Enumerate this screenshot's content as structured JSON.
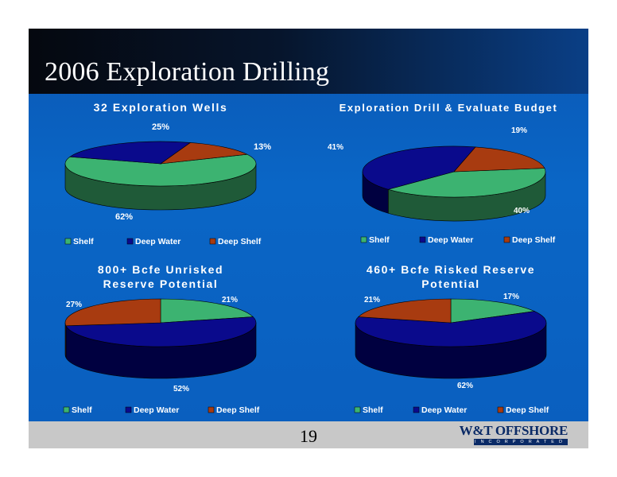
{
  "slide": {
    "title": "2006 Exploration Drilling",
    "page_number": "19",
    "logo_text": "W&T OFFSHORE",
    "logo_subtext": "INCORPORATED"
  },
  "colors": {
    "shelf": "#3cb371",
    "deep_water": "#0a0a8c",
    "deep_shelf": "#a83b10",
    "background": "#0a5fbf",
    "title_bar": "#06152c"
  },
  "chart_data": [
    {
      "type": "pie",
      "title": "32 Exploration Wells",
      "categories": [
        "Shelf",
        "Deep Water",
        "Deep Shelf"
      ],
      "values": [
        62,
        25,
        13
      ],
      "labels": [
        "62%",
        "25%",
        "13%"
      ],
      "legend": [
        "Shelf",
        "Deep Water",
        "Deep Shelf"
      ],
      "legend_position": "bottom",
      "three_d": true
    },
    {
      "type": "pie",
      "title": "Exploration Drill & Evaluate Budget",
      "categories": [
        "Shelf",
        "Deep Water",
        "Deep Shelf"
      ],
      "values": [
        40,
        41,
        19
      ],
      "labels": [
        "40%",
        "41%",
        "19%"
      ],
      "legend": [
        "Shelf",
        "Deep Water",
        "Deep Shelf"
      ],
      "legend_position": "bottom",
      "three_d": true
    },
    {
      "type": "pie",
      "title": "800+ Bcfe Unrisked Reserve Potential",
      "categories": [
        "Shelf",
        "Deep Water",
        "Deep Shelf"
      ],
      "values": [
        21,
        52,
        27
      ],
      "labels": [
        "21%",
        "52%",
        "27%"
      ],
      "legend": [
        "Shelf",
        "Deep Water",
        "Deep Shelf"
      ],
      "legend_position": "bottom",
      "three_d": true
    },
    {
      "type": "pie",
      "title": "460+ Bcfe Risked Reserve Potential",
      "categories": [
        "Shelf",
        "Deep Water",
        "Deep Shelf"
      ],
      "values": [
        17,
        62,
        21
      ],
      "labels": [
        "17%",
        "62%",
        "21%"
      ],
      "legend": [
        "Shelf",
        "Deep Water",
        "Deep Shelf"
      ],
      "legend_position": "bottom",
      "three_d": true
    }
  ]
}
